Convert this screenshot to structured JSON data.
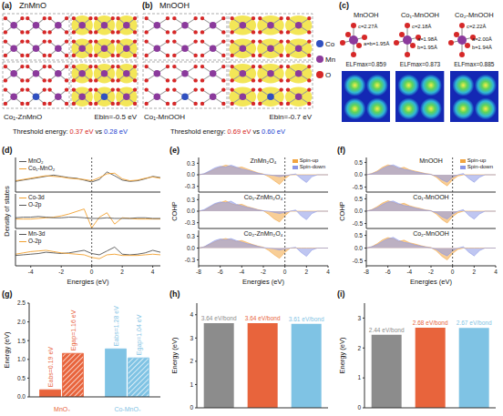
{
  "structure_panels": [
    {
      "panel": "(a)",
      "title": "ZnMnO",
      "doped_label": "Co₁-ZnMnO",
      "binding_energy": "Ebin=-0.5 eV",
      "threshold": {
        "text": "Threshold energy:",
        "pristine": "0.37 eV",
        "separator": "vs",
        "doped": "0.28 eV"
      }
    },
    {
      "panel": "(b)",
      "title": "MnOOH",
      "doped_label": "Co₁-MnOOH",
      "binding_energy": "Ebin=-0.7 eV",
      "threshold": {
        "text": "Threshold energy:",
        "pristine": "0.69 eV",
        "separator": "vs",
        "doped": "0.60 eV"
      },
      "legend": [
        {
          "label": "Co",
          "color": "#3050c0"
        },
        {
          "label": "Mn",
          "color": "#8b3a9c"
        },
        {
          "label": "O",
          "color": "#d62828"
        }
      ]
    },
    {
      "panel": "(c)",
      "structures": [
        {
          "title": "MnOOH",
          "bonds": [
            "c=2.27Å",
            "a=b=1.95Å"
          ],
          "elf": "ELFmax=0.859"
        },
        {
          "title": "Co₁-MnOOH",
          "bonds": [
            "c=2.18Å",
            "a=1.98Å",
            "b=1.95Å"
          ],
          "elf": "ELFmax=0.873"
        },
        {
          "title": "Co₂-MnOOH",
          "bonds": [
            "c=2.22Å",
            "a=2.00Å",
            "b=1.94Å"
          ],
          "elf": "ELFmax=0.885"
        }
      ]
    }
  ],
  "chart_data": [
    {
      "panel": "(d)",
      "type": "line",
      "xlabel": "Energies (eV)",
      "ylabel": "Density of states",
      "x": [
        -5,
        -4.5,
        -4,
        -3.5,
        -3,
        -2.5,
        -2,
        -1.5,
        -1,
        -0.5,
        0,
        0.5,
        1,
        1.5,
        2,
        2.5,
        3,
        3.5,
        4,
        4.5
      ],
      "xlim": [
        -5,
        4.5
      ],
      "xticks": [
        -4,
        -2,
        0,
        2,
        4
      ],
      "ylim": [
        -1.5,
        4
      ],
      "tick_labels": "x",
      "reference_x": 0,
      "subplots": [
        {
          "series": [
            {
              "name": "MnO₂",
              "color": "#555555",
              "values": [
                0.2,
                0.4,
                0.6,
                0.8,
                1.0,
                1.2,
                1.0,
                0.8,
                0.7,
                0.4,
                0.1,
                0.5,
                1.7,
                1.1,
                0.4,
                0.2,
                0.3,
                0.6,
                1.0,
                0.8
              ]
            },
            {
              "name": "Co₁-MnO₂",
              "color": "#f0a030",
              "values": [
                0.3,
                0.5,
                0.7,
                0.9,
                1.1,
                1.0,
                0.9,
                0.7,
                0.6,
                0.5,
                0.3,
                0.8,
                1.4,
                1.5,
                0.6,
                0.3,
                0.4,
                0.7,
                0.9,
                0.7
              ]
            }
          ]
        },
        {
          "series": [
            {
              "name": "Co-3d",
              "color": "#f0a030",
              "values": [
                0,
                0,
                0,
                0.1,
                0.2,
                0.3,
                0.5,
                0.8,
                1.2,
                1.6,
                -1.4,
                0.3,
                1.0,
                -0.8,
                0.2,
                0.1,
                0,
                0,
                0,
                0
              ]
            },
            {
              "name": "O-2p",
              "color": "#555555",
              "values": [
                0.2,
                0.3,
                0.3,
                0.4,
                0.3,
                0.2,
                0.2,
                0.3,
                0.3,
                0.2,
                0.1,
                0.1,
                0.2,
                0.1,
                0.1,
                0.1,
                0.2,
                0.2,
                0.1,
                0.1
              ]
            }
          ]
        },
        {
          "series": [
            {
              "name": "Mn-3d",
              "color": "#555555",
              "values": [
                0.1,
                0.2,
                0.3,
                0.4,
                0.6,
                0.5,
                0.4,
                0.5,
                0.7,
                0.9,
                0.4,
                0.2,
                0.8,
                1.4,
                0.3,
                0.2,
                0.3,
                0.5,
                0.9,
                0.6
              ]
            },
            {
              "name": "O-2p",
              "color": "#f0a030",
              "values": [
                0.3,
                0.5,
                0.7,
                0.8,
                0.9,
                0.7,
                0.5,
                0.4,
                0.3,
                0.2,
                -0.2,
                -0.4,
                0.2,
                0.3,
                0.1,
                0.1,
                0.1,
                0.2,
                0.3,
                0.2
              ]
            }
          ]
        }
      ]
    },
    {
      "panel": "(e)",
      "type": "area",
      "xlabel": "Energies (eV)",
      "ylabel": "COHP",
      "x": [
        -8,
        -7.5,
        -7,
        -6.5,
        -6,
        -5.5,
        -5,
        -4.5,
        -4,
        -3.5,
        -3,
        -2.5,
        -2,
        -1.5,
        -1,
        -0.5,
        0,
        0.5,
        1,
        1.5,
        2,
        2.5,
        3,
        3.5,
        4
      ],
      "xlim": [
        -8,
        4
      ],
      "xticks": [
        -8,
        -6,
        -4,
        -2,
        0,
        2,
        4
      ],
      "ylim": [
        -0.45,
        0.45
      ],
      "yticks": [
        -0.3,
        {
          "value": 0,
          "label": "0.0"
        },
        0.3
      ],
      "reference_x": 0,
      "series": [
        {
          "name": "Spin-up",
          "color": "#f2a541"
        },
        {
          "name": "Spin-down",
          "color": "#8b97e6"
        }
      ],
      "subplots": [
        {
          "title": "ZnMn₂O₄",
          "values": [
            [
              0,
              0.02,
              0.08,
              0.15,
              0.2,
              0.25,
              0.22,
              0.18,
              0.2,
              0.15,
              0.1,
              0.05,
              0.02,
              -0.05,
              -0.15,
              -0.25,
              -0.1,
              0,
              0,
              0,
              0,
              0,
              0,
              0,
              0
            ],
            [
              0,
              0.03,
              0.1,
              0.18,
              0.22,
              0.2,
              0.25,
              0.2,
              0.15,
              0.12,
              0.08,
              0.04,
              0.01,
              0,
              -0.02,
              -0.05,
              -0.02,
              0,
              0.02,
              -0.1,
              -0.2,
              -0.05,
              0,
              0,
              0
            ]
          ]
        },
        {
          "title": "Co₁-ZnMn₂O₄",
          "values": [
            [
              0,
              0.02,
              0.1,
              0.18,
              0.22,
              0.27,
              0.2,
              0.16,
              0.18,
              0.12,
              0.08,
              0.04,
              0.01,
              -0.08,
              -0.2,
              -0.28,
              -0.12,
              0,
              0,
              0,
              0,
              0,
              0,
              0,
              0
            ],
            [
              0,
              0.04,
              0.12,
              0.2,
              0.24,
              0.22,
              0.26,
              0.18,
              0.14,
              0.1,
              0.07,
              0.03,
              0.01,
              0,
              -0.03,
              -0.06,
              -0.03,
              0,
              0.03,
              -0.12,
              -0.22,
              -0.06,
              0,
              0,
              0
            ]
          ]
        },
        {
          "title": "Co₂-ZnMn₂O₄",
          "values": [
            [
              0,
              0.03,
              0.09,
              0.16,
              0.21,
              0.24,
              0.21,
              0.17,
              0.19,
              0.14,
              0.09,
              0.05,
              0.02,
              -0.06,
              -0.17,
              -0.26,
              -0.11,
              0,
              0,
              0,
              0,
              0,
              0,
              0,
              0
            ],
            [
              0,
              0.03,
              0.11,
              0.19,
              0.23,
              0.21,
              0.24,
              0.19,
              0.15,
              0.11,
              0.08,
              0.04,
              0.01,
              0,
              -0.02,
              -0.05,
              -0.02,
              0,
              0.02,
              -0.11,
              -0.21,
              -0.05,
              0,
              0,
              0
            ]
          ]
        }
      ]
    },
    {
      "panel": "(f)",
      "type": "area",
      "xlabel": "Energies (eV)",
      "ylabel": "COHP",
      "x": [
        -8,
        -7.5,
        -7,
        -6.5,
        -6,
        -5.5,
        -5,
        -4.5,
        -4,
        -3.5,
        -3,
        -2.5,
        -2,
        -1.5,
        -1,
        -0.5,
        0,
        0.5,
        1,
        1.5,
        2,
        2.5,
        3,
        3.5,
        4
      ],
      "xlim": [
        -8,
        4
      ],
      "xticks": [
        -8,
        -6,
        -4,
        -2,
        0,
        2,
        4
      ],
      "ylim": [
        -0.7,
        0.7
      ],
      "yticks": [
        -0.5,
        {
          "value": 0,
          "label": "0.0"
        },
        0.5
      ],
      "reference_x": 0,
      "series": [
        {
          "name": "Spin-up",
          "color": "#f2a541"
        },
        {
          "name": "Spin-down",
          "color": "#8b97e6"
        }
      ],
      "subplots": [
        {
          "title": "MnOOH",
          "values": [
            [
              0,
              0.05,
              0.15,
              0.3,
              0.4,
              0.35,
              0.25,
              0.3,
              0.2,
              0.15,
              0.1,
              0.05,
              0.02,
              -0.1,
              -0.3,
              -0.45,
              -0.2,
              -0.05,
              0,
              0,
              0,
              0,
              0,
              0,
              0
            ],
            [
              0,
              0.04,
              0.12,
              0.25,
              0.35,
              0.4,
              0.3,
              0.22,
              0.18,
              0.12,
              0.08,
              0.04,
              0.01,
              -0.05,
              -0.2,
              -0.3,
              -0.1,
              0,
              0.05,
              -0.15,
              -0.3,
              -0.1,
              0,
              0,
              0
            ]
          ]
        },
        {
          "title": "Co₁-MnOOH",
          "values": [
            [
              0,
              0.06,
              0.18,
              0.33,
              0.42,
              0.36,
              0.27,
              0.32,
              0.22,
              0.16,
              0.11,
              0.05,
              0.02,
              -0.12,
              -0.33,
              -0.48,
              -0.22,
              -0.06,
              0,
              0,
              0,
              0,
              0,
              0,
              0
            ],
            [
              0,
              0.05,
              0.14,
              0.27,
              0.37,
              0.41,
              0.31,
              0.23,
              0.19,
              0.13,
              0.08,
              0.04,
              0.01,
              -0.06,
              -0.22,
              -0.32,
              -0.12,
              0,
              0.06,
              -0.17,
              -0.32,
              -0.11,
              0,
              0,
              0
            ]
          ]
        },
        {
          "title": "Co₂-MnOOH",
          "values": [
            [
              0,
              0.05,
              0.17,
              0.32,
              0.41,
              0.37,
              0.26,
              0.31,
              0.21,
              0.16,
              0.1,
              0.05,
              0.02,
              -0.11,
              -0.32,
              -0.47,
              -0.21,
              -0.05,
              0,
              0,
              0,
              0,
              0,
              0,
              0
            ],
            [
              0,
              0.05,
              0.13,
              0.26,
              0.36,
              0.42,
              0.3,
              0.22,
              0.19,
              0.12,
              0.08,
              0.04,
              0.01,
              -0.05,
              -0.21,
              -0.31,
              -0.11,
              0,
              0.05,
              -0.16,
              -0.31,
              -0.1,
              0,
              0,
              0
            ]
          ]
        }
      ]
    },
    {
      "panel": "(g)",
      "type": "bar",
      "ylabel": "Energy (eV)",
      "categories": [
        "MnO₂",
        "Co-MnO₂"
      ],
      "colors": [
        "#e8643c",
        "#7fc3e4"
      ],
      "ylim": [
        0,
        2.5
      ],
      "yticks": [
        {
          "value": 0,
          "label": "0.0"
        },
        0.5,
        {
          "value": 1,
          "label": "1.0"
        },
        1.5,
        {
          "value": 2,
          "label": "2.0"
        },
        2.5
      ],
      "data_labels": true,
      "series": [
        {
          "values": [
            0.19,
            1.28
          ],
          "value_labels": [
            "Eabs=0.19 eV",
            "Eabs=1.28 eV"
          ]
        },
        {
          "values": [
            1.16,
            1.04
          ],
          "value_labels": [
            "Egap=1.16 eV",
            "Egap=1.04 eV"
          ]
        }
      ]
    },
    {
      "panel": "(h)",
      "type": "bar",
      "ylabel": "Energy (eV)",
      "categories": [
        null,
        null,
        null
      ],
      "values": [
        3.64,
        3.64,
        3.61
      ],
      "value_labels": [
        "3.64 eV/bond",
        "3.64 eV/bond",
        "3.61 eV/bond"
      ],
      "colors": [
        "#8c8c8c",
        "#e8643c",
        "#7fc3e4"
      ],
      "ylim": [
        0,
        4.5
      ],
      "yticks": [
        0,
        1,
        2,
        3,
        4
      ],
      "data_labels": true,
      "tick_labels": "y"
    },
    {
      "panel": "(i)",
      "type": "bar",
      "ylabel": "Energy (eV)",
      "categories": [
        null,
        null,
        null
      ],
      "values": [
        2.44,
        2.68,
        2.67
      ],
      "value_labels": [
        "2.44 eV/bond",
        "2.68 eV/bond",
        "2.67 eV/bond"
      ],
      "colors": [
        "#8c8c8c",
        "#e8643c",
        "#7fc3e4"
      ],
      "ylim": [
        0,
        3.5
      ],
      "yticks": [
        0,
        1,
        2,
        3
      ],
      "data_labels": true,
      "tick_labels": "y"
    }
  ]
}
